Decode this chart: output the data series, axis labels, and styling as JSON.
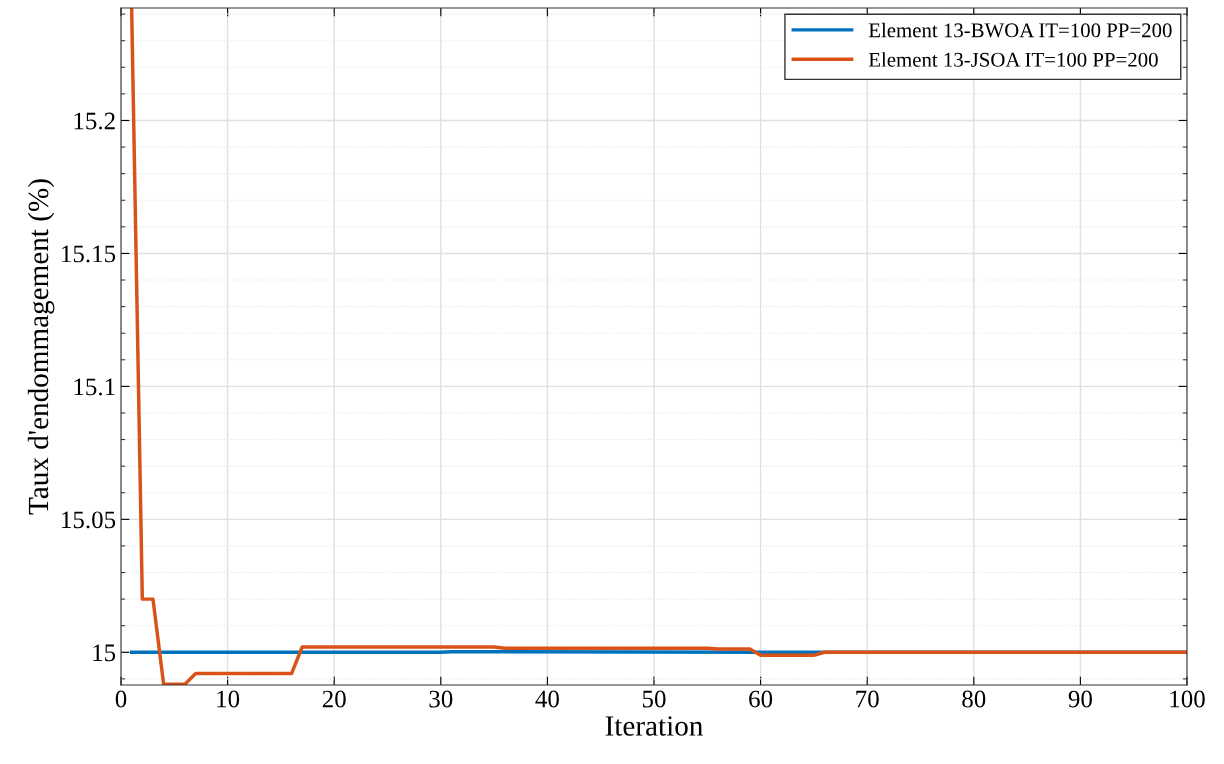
{
  "chart_data": {
    "type": "line",
    "xlabel": "Iteration",
    "ylabel": "Taux d'endommagement (%)",
    "xlim": [
      0,
      100
    ],
    "xticks": [
      0,
      10,
      20,
      30,
      40,
      50,
      60,
      70,
      80,
      90,
      100
    ],
    "ylim": [
      14.9877,
      15.2423
    ],
    "yticks": [
      15,
      15.05,
      15.1,
      15.15,
      15.2
    ],
    "grid": true,
    "legend": "top right",
    "marker": "none",
    "line_style": "solid",
    "series": [
      {
        "name": "Element 13-BWOA IT=100 PP=200",
        "color": "#0072bd",
        "x": [
          1,
          30,
          31,
          66,
          100
        ],
        "values": [
          15.0,
          15.0,
          15.0002,
          15.0,
          15.0
        ]
      },
      {
        "name": "Element 13-JSOA IT=100 PP=200",
        "color": "#d95319",
        "x": [
          1,
          2,
          3,
          4,
          6,
          7,
          16,
          17,
          35,
          36,
          55,
          56,
          59,
          60,
          65,
          66,
          100
        ],
        "values": [
          15.242,
          15.02,
          15.02,
          14.988,
          14.988,
          14.992,
          14.992,
          15.002,
          15.002,
          15.0015,
          15.0015,
          15.0012,
          15.0012,
          14.9989,
          14.9989,
          15.0,
          15.0
        ]
      }
    ]
  }
}
